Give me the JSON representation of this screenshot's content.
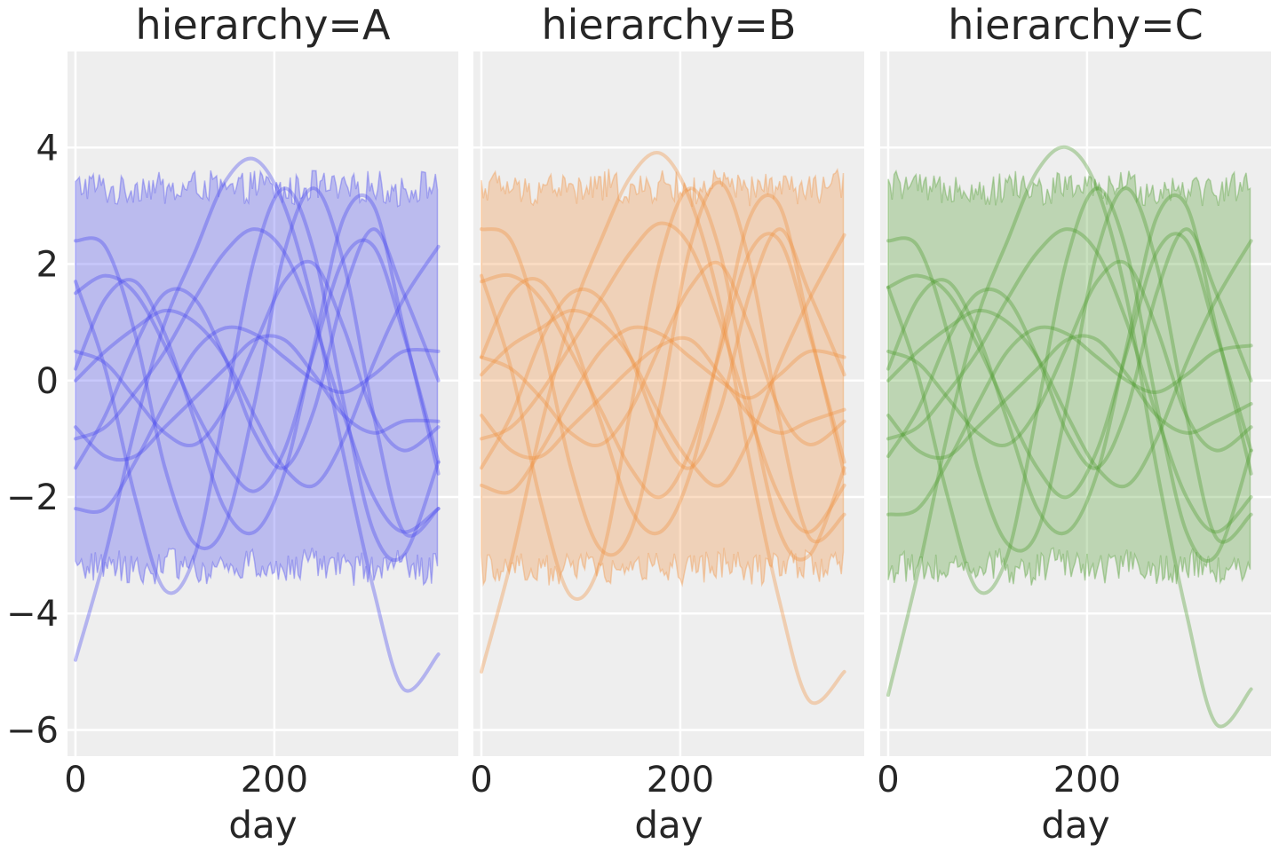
{
  "chart_data": [
    {
      "type": "line",
      "title": "hierarchy=A",
      "xlabel": "day",
      "ylabel": "",
      "color": "#4444ee",
      "xlim": [
        -8,
        385
      ],
      "ylim": [
        -6.45,
        5.65
      ],
      "xticks": [
        0,
        200
      ],
      "xtick_labels": [
        "0",
        "200"
      ],
      "yticks": [
        4,
        2,
        0,
        -2,
        -4,
        -6
      ],
      "ytick_labels": [
        "4",
        "2",
        "0",
        "−2",
        "−4",
        "−6"
      ],
      "grid": true,
      "band": {
        "x_range": [
          0,
          365
        ],
        "upper_level": 3.3,
        "lower_level": -3.2,
        "note": "shaded interval between noisy upper and lower bounds"
      },
      "series": [
        {
          "x": [
            0,
            30,
            60,
            90,
            120,
            150,
            180,
            210,
            240,
            270,
            300,
            330,
            365
          ],
          "values": [
            -4.8,
            -3.0,
            -0.8,
            1.0,
            2.2,
            3.4,
            3.8,
            3.0,
            1.2,
            -1.3,
            -3.6,
            -5.3,
            -4.7
          ]
        },
        {
          "x": [
            0,
            30,
            60,
            90,
            120,
            150,
            180,
            210,
            240,
            270,
            300,
            330,
            365
          ],
          "values": [
            2.4,
            2.3,
            0.8,
            -1.5,
            -2.8,
            -2.5,
            -0.4,
            2.2,
            3.3,
            2.0,
            -0.6,
            -2.6,
            -2.2
          ]
        },
        {
          "x": [
            0,
            30,
            60,
            90,
            120,
            150,
            180,
            210,
            240,
            270,
            300,
            330,
            365
          ],
          "values": [
            1.5,
            1.8,
            1.5,
            0.6,
            -0.5,
            -1.4,
            -1.9,
            -1.2,
            0.5,
            2.1,
            2.3,
            0.8,
            -1.4
          ]
        },
        {
          "x": [
            0,
            30,
            60,
            90,
            120,
            150,
            180,
            210,
            240,
            270,
            300,
            330,
            365
          ],
          "values": [
            0.5,
            0.3,
            -0.3,
            -0.9,
            -1.1,
            -0.5,
            0.6,
            1.7,
            2.0,
            0.9,
            -0.6,
            -1.2,
            -0.8
          ]
        },
        {
          "x": [
            0,
            30,
            60,
            90,
            120,
            150,
            180,
            210,
            240,
            270,
            300,
            330,
            365
          ],
          "values": [
            -0.8,
            -1.3,
            -1.3,
            -0.8,
            -0.3,
            0.2,
            0.7,
            0.7,
            0.1,
            -0.6,
            -0.9,
            -0.7,
            -0.7
          ]
        },
        {
          "x": [
            0,
            30,
            60,
            90,
            120,
            150,
            180,
            210,
            240,
            270,
            300,
            330,
            365
          ],
          "values": [
            0.2,
            1.4,
            1.7,
            0.8,
            -0.7,
            -2.2,
            -2.6,
            -1.6,
            0.6,
            2.8,
            3.0,
            0.9,
            -1.6
          ]
        },
        {
          "x": [
            0,
            30,
            60,
            90,
            120,
            150,
            180,
            210,
            240,
            270,
            300,
            330,
            365
          ],
          "values": [
            -2.2,
            -2.2,
            -1.4,
            -0.4,
            0.5,
            0.9,
            0.8,
            0.4,
            0.0,
            -0.2,
            0.1,
            0.5,
            0.5
          ]
        },
        {
          "x": [
            0,
            30,
            60,
            90,
            120,
            150,
            180,
            210,
            240,
            270,
            300,
            330,
            365
          ],
          "values": [
            1.7,
            0.2,
            -2.0,
            -3.6,
            -3.0,
            -0.5,
            2.1,
            3.3,
            2.2,
            -0.4,
            -2.6,
            -3.0,
            -1.4
          ]
        },
        {
          "x": [
            0,
            30,
            60,
            90,
            120,
            150,
            180,
            210,
            240,
            270,
            300,
            330,
            365
          ],
          "values": [
            -1.5,
            -0.6,
            0.6,
            1.5,
            1.4,
            0.4,
            -0.9,
            -1.5,
            -0.5,
            1.5,
            2.6,
            1.5,
            0.0
          ]
        },
        {
          "x": [
            0,
            30,
            60,
            90,
            120,
            150,
            180,
            210,
            240,
            270,
            300,
            330,
            365
          ],
          "values": [
            0.0,
            0.5,
            0.9,
            1.2,
            1.0,
            0.4,
            -0.6,
            -1.5,
            -1.8,
            -1.0,
            0.3,
            1.4,
            2.3
          ]
        },
        {
          "x": [
            0,
            30,
            60,
            90,
            120,
            150,
            180,
            210,
            240,
            270,
            300,
            330,
            365
          ],
          "values": [
            -1.0,
            -0.8,
            -0.2,
            0.5,
            1.4,
            2.2,
            2.6,
            2.2,
            1.0,
            -0.6,
            -2.0,
            -2.6,
            -2.2
          ]
        }
      ]
    },
    {
      "type": "line",
      "title": "hierarchy=B",
      "xlabel": "day",
      "ylabel": "",
      "color": "#f28e3c",
      "xlim": [
        -8,
        385
      ],
      "ylim": [
        -6.45,
        5.65
      ],
      "xticks": [
        0,
        200
      ],
      "xtick_labels": [
        "0",
        "200"
      ],
      "yticks": [
        4,
        2,
        0,
        -2,
        -4,
        -6
      ],
      "ytick_labels": [],
      "grid": true,
      "band": {
        "x_range": [
          0,
          365
        ],
        "upper_level": 3.3,
        "lower_level": -3.2,
        "note": "shaded interval between noisy upper and lower bounds"
      },
      "series": [
        {
          "x": [
            0,
            30,
            60,
            90,
            120,
            150,
            180,
            210,
            240,
            270,
            300,
            330,
            365
          ],
          "values": [
            -5.0,
            -3.1,
            -0.8,
            1.1,
            2.4,
            3.5,
            3.9,
            3.1,
            1.3,
            -1.4,
            -3.8,
            -5.5,
            -5.0
          ]
        },
        {
          "x": [
            0,
            30,
            60,
            90,
            120,
            150,
            180,
            210,
            240,
            270,
            300,
            330,
            365
          ],
          "values": [
            2.6,
            2.4,
            0.8,
            -1.5,
            -2.9,
            -2.6,
            -0.4,
            2.3,
            3.4,
            2.0,
            -0.7,
            -2.7,
            -2.3
          ]
        },
        {
          "x": [
            0,
            30,
            60,
            90,
            120,
            150,
            180,
            210,
            240,
            270,
            300,
            330,
            365
          ],
          "values": [
            1.7,
            1.8,
            1.4,
            0.5,
            -0.5,
            -1.5,
            -2.0,
            -1.2,
            0.5,
            2.2,
            2.4,
            0.8,
            -1.4
          ]
        },
        {
          "x": [
            0,
            30,
            60,
            90,
            120,
            150,
            180,
            210,
            240,
            270,
            300,
            330,
            365
          ],
          "values": [
            0.4,
            0.2,
            -0.3,
            -0.9,
            -1.1,
            -0.5,
            0.6,
            1.6,
            2.0,
            0.9,
            -0.5,
            -1.1,
            -0.7
          ]
        },
        {
          "x": [
            0,
            30,
            60,
            90,
            120,
            150,
            180,
            210,
            240,
            270,
            300,
            330,
            365
          ],
          "values": [
            -0.6,
            -1.2,
            -1.3,
            -0.8,
            -0.3,
            0.2,
            0.6,
            0.7,
            0.1,
            -0.6,
            -0.9,
            -0.7,
            -0.5
          ]
        },
        {
          "x": [
            0,
            30,
            60,
            90,
            120,
            150,
            180,
            210,
            240,
            270,
            300,
            330,
            365
          ],
          "values": [
            0.4,
            1.5,
            1.7,
            0.8,
            -0.7,
            -2.2,
            -2.6,
            -1.6,
            0.6,
            2.8,
            3.0,
            0.9,
            -1.6
          ]
        },
        {
          "x": [
            0,
            30,
            60,
            90,
            120,
            150,
            180,
            210,
            240,
            270,
            300,
            330,
            365
          ],
          "values": [
            -1.8,
            -1.9,
            -1.2,
            -0.3,
            0.5,
            0.9,
            0.8,
            0.4,
            0.0,
            -0.3,
            0.1,
            0.5,
            0.4
          ]
        },
        {
          "x": [
            0,
            30,
            60,
            90,
            120,
            150,
            180,
            210,
            240,
            270,
            300,
            330,
            365
          ],
          "values": [
            1.8,
            0.2,
            -2.1,
            -3.7,
            -3.1,
            -0.5,
            2.1,
            3.3,
            2.2,
            -0.4,
            -2.6,
            -3.0,
            -1.5
          ]
        },
        {
          "x": [
            0,
            30,
            60,
            90,
            120,
            150,
            180,
            210,
            240,
            270,
            300,
            330,
            365
          ],
          "values": [
            -1.5,
            -0.6,
            0.7,
            1.5,
            1.4,
            0.4,
            -0.9,
            -1.5,
            -0.5,
            1.5,
            2.6,
            1.5,
            0.1
          ]
        },
        {
          "x": [
            0,
            30,
            60,
            90,
            120,
            150,
            180,
            210,
            240,
            270,
            300,
            330,
            365
          ],
          "values": [
            0.1,
            0.6,
            0.9,
            1.2,
            1.0,
            0.4,
            -0.6,
            -1.4,
            -1.8,
            -1.0,
            0.3,
            1.4,
            2.5
          ]
        },
        {
          "x": [
            0,
            30,
            60,
            90,
            120,
            150,
            180,
            210,
            240,
            270,
            300,
            330,
            365
          ],
          "values": [
            -1.0,
            -0.8,
            -0.2,
            0.6,
            1.4,
            2.2,
            2.7,
            2.3,
            1.0,
            -0.6,
            -2.0,
            -2.6,
            -1.8
          ]
        }
      ]
    },
    {
      "type": "line",
      "title": "hierarchy=C",
      "xlabel": "day",
      "ylabel": "",
      "color": "#4b9a2a",
      "xlim": [
        -8,
        385
      ],
      "ylim": [
        -6.45,
        5.65
      ],
      "xticks": [
        0,
        200
      ],
      "xtick_labels": [
        "0",
        "200"
      ],
      "yticks": [
        4,
        2,
        0,
        -2,
        -4,
        -6
      ],
      "ytick_labels": [],
      "grid": true,
      "band": {
        "x_range": [
          0,
          365
        ],
        "upper_level": 3.3,
        "lower_level": -3.2,
        "note": "shaded interval between noisy upper and lower bounds"
      },
      "series": [
        {
          "x": [
            0,
            30,
            60,
            90,
            120,
            150,
            180,
            210,
            240,
            270,
            300,
            330,
            365
          ],
          "values": [
            -5.4,
            -3.3,
            -0.9,
            1.1,
            2.4,
            3.6,
            4.0,
            3.3,
            1.4,
            -1.5,
            -4.0,
            -5.9,
            -5.3
          ]
        },
        {
          "x": [
            0,
            30,
            60,
            90,
            120,
            150,
            180,
            210,
            240,
            270,
            300,
            330,
            365
          ],
          "values": [
            2.4,
            2.3,
            0.8,
            -1.5,
            -2.8,
            -2.6,
            -0.4,
            2.2,
            3.3,
            2.0,
            -0.6,
            -2.7,
            -2.3
          ]
        },
        {
          "x": [
            0,
            30,
            60,
            90,
            120,
            150,
            180,
            210,
            240,
            270,
            300,
            330,
            365
          ],
          "values": [
            1.6,
            1.8,
            1.5,
            0.6,
            -0.5,
            -1.5,
            -2.0,
            -1.2,
            0.5,
            2.2,
            2.4,
            0.8,
            -1.2
          ]
        },
        {
          "x": [
            0,
            30,
            60,
            90,
            120,
            150,
            180,
            210,
            240,
            270,
            300,
            330,
            365
          ],
          "values": [
            0.5,
            0.3,
            -0.3,
            -0.9,
            -1.1,
            -0.5,
            0.6,
            1.7,
            2.0,
            0.9,
            -0.6,
            -1.2,
            -0.8
          ]
        },
        {
          "x": [
            0,
            30,
            60,
            90,
            120,
            150,
            180,
            210,
            240,
            270,
            300,
            330,
            365
          ],
          "values": [
            -0.6,
            -1.2,
            -1.3,
            -0.8,
            -0.3,
            0.2,
            0.7,
            0.7,
            0.1,
            -0.6,
            -0.9,
            -0.7,
            -0.4
          ]
        },
        {
          "x": [
            0,
            30,
            60,
            90,
            120,
            150,
            180,
            210,
            240,
            270,
            300,
            330,
            365
          ],
          "values": [
            0.2,
            1.4,
            1.7,
            0.8,
            -0.7,
            -2.2,
            -2.6,
            -1.6,
            0.6,
            2.8,
            3.0,
            0.9,
            -1.6
          ]
        },
        {
          "x": [
            0,
            30,
            60,
            90,
            120,
            150,
            180,
            210,
            240,
            270,
            300,
            330,
            365
          ],
          "values": [
            -2.3,
            -2.2,
            -1.4,
            -0.4,
            0.5,
            0.9,
            0.8,
            0.4,
            0.0,
            -0.2,
            0.1,
            0.5,
            0.6
          ]
        },
        {
          "x": [
            0,
            30,
            60,
            90,
            120,
            150,
            180,
            210,
            240,
            270,
            300,
            330,
            365
          ],
          "values": [
            1.6,
            0.1,
            -2.0,
            -3.6,
            -3.0,
            -0.5,
            2.1,
            3.3,
            2.2,
            -0.4,
            -2.6,
            -3.0,
            -1.2
          ]
        },
        {
          "x": [
            0,
            30,
            60,
            90,
            120,
            150,
            180,
            210,
            240,
            270,
            300,
            330,
            365
          ],
          "values": [
            -1.3,
            -0.5,
            0.7,
            1.5,
            1.4,
            0.4,
            -0.9,
            -1.5,
            -0.5,
            1.5,
            2.6,
            1.5,
            0.0
          ]
        },
        {
          "x": [
            0,
            30,
            60,
            90,
            120,
            150,
            180,
            210,
            240,
            270,
            300,
            330,
            365
          ],
          "values": [
            0.0,
            0.5,
            0.9,
            1.2,
            1.0,
            0.4,
            -0.6,
            -1.5,
            -1.8,
            -1.0,
            0.3,
            1.4,
            2.4
          ]
        },
        {
          "x": [
            0,
            30,
            60,
            90,
            120,
            150,
            180,
            210,
            240,
            270,
            300,
            330,
            365
          ],
          "values": [
            -1.0,
            -0.8,
            -0.2,
            0.5,
            1.4,
            2.2,
            2.6,
            2.2,
            1.0,
            -0.6,
            -2.0,
            -2.6,
            -2.0
          ]
        }
      ]
    }
  ]
}
